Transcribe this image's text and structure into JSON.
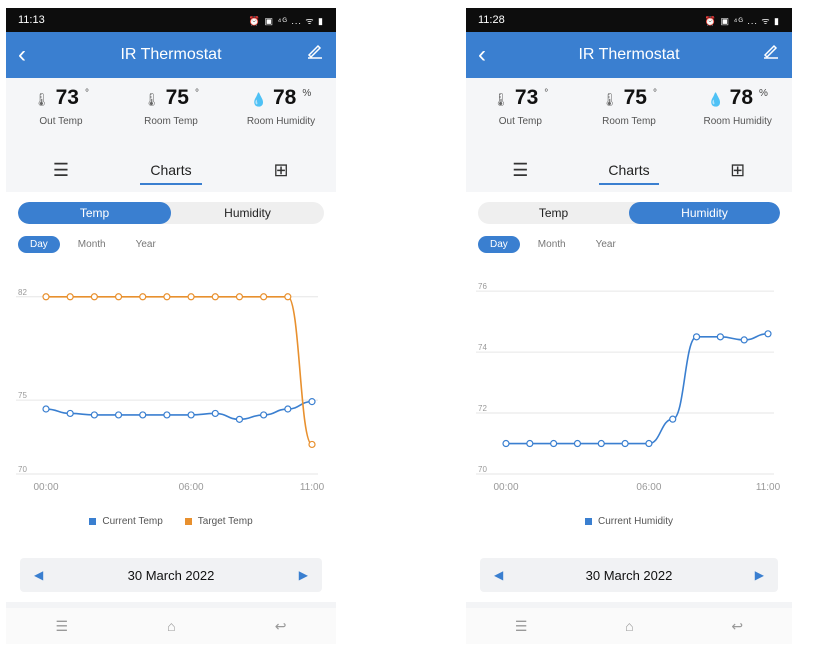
{
  "screens": [
    {
      "status_time": "11:13",
      "status_icons": "⏰ ▣ ⁴ᴳ ... ᯤ ▮",
      "title": "IR Thermostat",
      "readings": [
        {
          "icon": "out-temp-icon",
          "value": "73",
          "unit": "°",
          "label": "Out Temp"
        },
        {
          "icon": "thermometer-icon",
          "value": "75",
          "unit": "°",
          "label": "Room Temp"
        },
        {
          "icon": "droplet-icon",
          "value": "78",
          "unit": "%",
          "label": "Room Humidity"
        }
      ],
      "tabs": {
        "charts": "Charts"
      },
      "segment": {
        "temp": "Temp",
        "humidity": "Humidity",
        "active": "Temp"
      },
      "periods": [
        "Day",
        "Month",
        "Year"
      ],
      "date": "30 March 2022",
      "legend": [
        "Current Temp",
        "Target Temp"
      ]
    },
    {
      "status_time": "11:28",
      "status_icons": "⏰ ▣ ⁴ᴳ ... ᯤ ▮",
      "title": "IR Thermostat",
      "readings": [
        {
          "icon": "out-temp-icon",
          "value": "73",
          "unit": "°",
          "label": "Out Temp"
        },
        {
          "icon": "thermometer-icon",
          "value": "75",
          "unit": "°",
          "label": "Room Temp"
        },
        {
          "icon": "droplet-icon",
          "value": "78",
          "unit": "%",
          "label": "Room Humidity"
        }
      ],
      "tabs": {
        "charts": "Charts"
      },
      "segment": {
        "temp": "Temp",
        "humidity": "Humidity",
        "active": "Humidity"
      },
      "periods": [
        "Day",
        "Month",
        "Year"
      ],
      "date": "30 March 2022",
      "legend": [
        "Current Humidity"
      ]
    }
  ],
  "colors": {
    "accent": "#3a7fd0",
    "target": "#e8902e",
    "current": "#3a7fd0"
  },
  "chart_data": [
    {
      "type": "line",
      "x_ticks": [
        "00:00",
        "06:00",
        "11:00"
      ],
      "y_ticks": [
        82,
        75,
        70
      ],
      "ylim": [
        70,
        83
      ],
      "x": [
        0,
        1,
        2,
        3,
        4,
        5,
        6,
        7,
        8,
        9,
        10,
        11
      ],
      "series": [
        {
          "name": "Current Temp",
          "color": "#3a7fd0",
          "values": [
            74.4,
            74.1,
            74.0,
            74.0,
            74.0,
            74.0,
            74.0,
            74.1,
            73.7,
            74.0,
            74.4,
            74.9
          ]
        },
        {
          "name": "Target Temp",
          "color": "#e8902e",
          "values": [
            82,
            82,
            82,
            82,
            82,
            82,
            82,
            82,
            82,
            82,
            82,
            72
          ]
        }
      ]
    },
    {
      "type": "line",
      "x_ticks": [
        "00:00",
        "06:00",
        "11:00"
      ],
      "y_ticks": [
        76,
        74,
        72,
        70
      ],
      "ylim": [
        70,
        76.3
      ],
      "x": [
        0,
        1,
        2,
        3,
        4,
        5,
        6,
        7,
        8,
        9,
        10,
        11
      ],
      "series": [
        {
          "name": "Current Humidity",
          "color": "#3a7fd0",
          "values": [
            71,
            71,
            71,
            71,
            71,
            71,
            71,
            71.8,
            74.5,
            74.5,
            74.4,
            74.6
          ]
        }
      ]
    }
  ]
}
